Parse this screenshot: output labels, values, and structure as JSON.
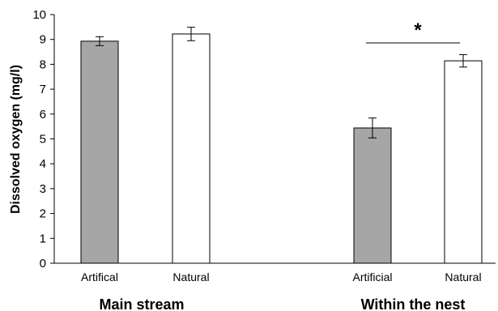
{
  "chart_data": {
    "type": "bar",
    "ylabel": "Dissolved oxygen (mg/l)",
    "ylim": [
      0,
      10
    ],
    "yticks": [
      0,
      1,
      2,
      3,
      4,
      5,
      6,
      7,
      8,
      9,
      10
    ],
    "grid": false,
    "groups": [
      {
        "label": "Main stream",
        "bars": [
          {
            "category": "Artifical",
            "value": 8.93,
            "error": 0.18,
            "fill": "#a6a6a6"
          },
          {
            "category": "Natural",
            "value": 9.22,
            "error": 0.27,
            "fill": "#ffffff"
          }
        ]
      },
      {
        "label": "Within the nest",
        "bars": [
          {
            "category": "Artificial",
            "value": 5.44,
            "error": 0.4,
            "fill": "#a6a6a6"
          },
          {
            "category": "Natural",
            "value": 8.14,
            "error": 0.25,
            "fill": "#ffffff"
          }
        ]
      }
    ],
    "annotations": [
      {
        "text": "*",
        "group": 1
      }
    ]
  }
}
